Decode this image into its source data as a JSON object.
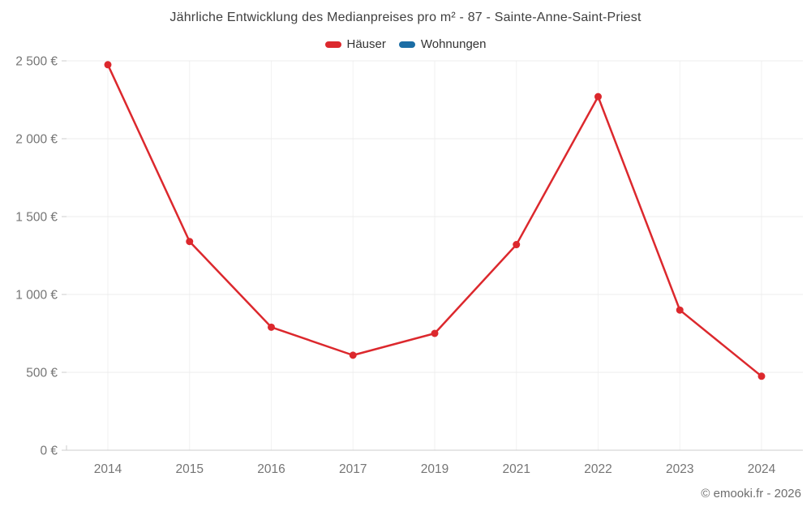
{
  "header": {
    "title": "Jährliche Entwicklung des Medianpreises pro m² - 87 - Sainte-Anne-Saint-Priest"
  },
  "legend": {
    "items": [
      {
        "label": "Häuser",
        "color": "#dc282d"
      },
      {
        "label": "Wohnungen",
        "color": "#1b6da5"
      }
    ]
  },
  "footer": {
    "credit": "© emooki.fr - 2026"
  },
  "chart_data": {
    "type": "line",
    "title": "Jährliche Entwicklung des Medianpreises pro m² - 87 - Sainte-Anne-Saint-Priest",
    "categories": [
      "2014",
      "2015",
      "2016",
      "2017",
      "2019",
      "2021",
      "2022",
      "2023",
      "2024"
    ],
    "series": [
      {
        "name": "Häuser",
        "color": "#dc282d",
        "values": [
          2475,
          1340,
          790,
          610,
          750,
          1320,
          2270,
          900,
          475
        ]
      },
      {
        "name": "Wohnungen",
        "color": "#1b6da5",
        "values": []
      }
    ],
    "xlabel": "",
    "ylabel": "",
    "ylim": [
      0,
      2500
    ],
    "yticks": [
      0,
      500,
      1000,
      1500,
      2000,
      2500
    ],
    "ytick_labels": [
      "0 €",
      "500 €",
      "1 000 €",
      "1 500 €",
      "2 000 €",
      "2 500 €"
    ],
    "grid": true,
    "legend_position": "top",
    "colors": {
      "axis_line": "#cccccc",
      "grid_horizontal": "#ececec",
      "grid_vertical": "#f2f2f2",
      "tick_label": "#757575"
    }
  }
}
